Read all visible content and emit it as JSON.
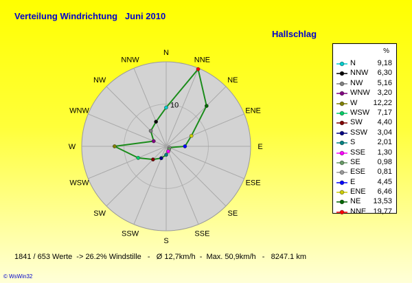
{
  "title": "Verteilung Windrichtung   Juni 2010",
  "station": "Hallschlag",
  "footer": "1841 / 653 Werte  -> 26.2% Windstille   -   Ø 12,7km/h  -  Max. 50,9km/h   -   8247.1 km",
  "credit": "© WsWin32",
  "legend_unit": "%",
  "chart_data": {
    "type": "radar",
    "title": "Verteilung Windrichtung   Juni 2010",
    "directions": [
      "N",
      "NNE",
      "NE",
      "ENE",
      "E",
      "ESE",
      "SE",
      "SSE",
      "S",
      "SSW",
      "SW",
      "WSW",
      "W",
      "WNW",
      "NW",
      "NNW"
    ],
    "values": [
      9.18,
      19.77,
      13.53,
      6.46,
      4.45,
      0.81,
      0.98,
      1.3,
      2.01,
      3.04,
      4.4,
      7.17,
      12.22,
      3.2,
      5.16,
      6.3
    ],
    "rmax": 20,
    "ring_label": "10",
    "line_color": "#1a8c1a",
    "legend": [
      {
        "dir": "N",
        "value": "9,18",
        "color": "#00cccc"
      },
      {
        "dir": "NNW",
        "value": "6,30",
        "color": "#000000"
      },
      {
        "dir": "NW",
        "value": "5,16",
        "color": "#808080"
      },
      {
        "dir": "WNW",
        "value": "3,20",
        "color": "#800080"
      },
      {
        "dir": "W",
        "value": "12,22",
        "color": "#808000"
      },
      {
        "dir": "WSW",
        "value": "7,17",
        "color": "#00cc66"
      },
      {
        "dir": "SW",
        "value": "4,40",
        "color": "#800000"
      },
      {
        "dir": "SSW",
        "value": "3,04",
        "color": "#000080"
      },
      {
        "dir": "S",
        "value": "2,01",
        "color": "#008080"
      },
      {
        "dir": "SSE",
        "value": "1,30",
        "color": "#ff00ff"
      },
      {
        "dir": "SE",
        "value": "0,98",
        "color": "#669966"
      },
      {
        "dir": "ESE",
        "value": "0,81",
        "color": "#999999"
      },
      {
        "dir": "E",
        "value": "4,45",
        "color": "#0000ff"
      },
      {
        "dir": "ENE",
        "value": "6,46",
        "color": "#cccc00"
      },
      {
        "dir": "NE",
        "value": "13,53",
        "color": "#006600"
      },
      {
        "dir": "NNE",
        "value": "19,77",
        "color": "#ff0000"
      }
    ]
  }
}
